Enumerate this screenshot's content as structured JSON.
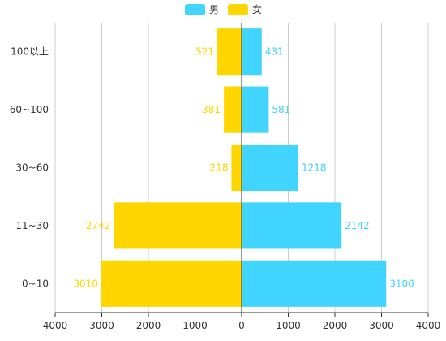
{
  "chart_data": {
    "type": "bar",
    "orientation": "horizontal-butterfly",
    "categories": [
      "0~10",
      "11~30",
      "30~60",
      "60~100",
      "100以上"
    ],
    "series": [
      {
        "name": "男",
        "values": [
          3100,
          2142,
          1218,
          581,
          431
        ],
        "direction": "right",
        "color": "#40d4ff"
      },
      {
        "name": "女",
        "values": [
          3010,
          2742,
          218,
          381,
          521
        ],
        "direction": "left",
        "color": "#ffd600"
      }
    ],
    "x_ticks": [
      "4000",
      "3000",
      "2000",
      "1000",
      "0",
      "1000",
      "2000",
      "3000",
      "4000"
    ],
    "xlim": [
      -4000,
      4000
    ],
    "grid": true,
    "legend": "top-center",
    "title": "",
    "xlabel": "",
    "ylabel": ""
  }
}
